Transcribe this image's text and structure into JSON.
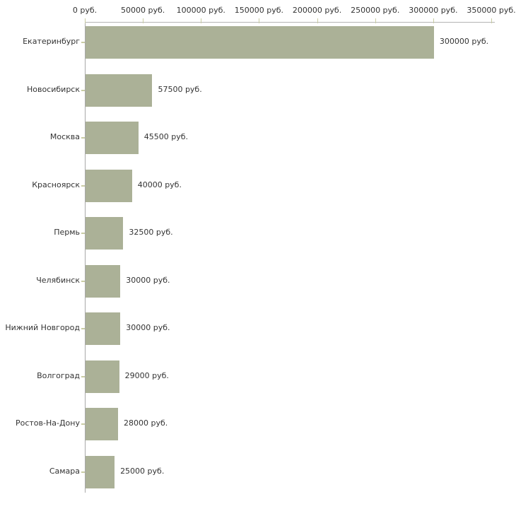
{
  "chart_data": {
    "type": "bar",
    "orientation": "horizontal",
    "title": "",
    "xlabel": "",
    "ylabel": "",
    "unit": "руб.",
    "grid": "off",
    "legend": "none",
    "categories": [
      "Екатеринбург",
      "Новосибирск",
      "Москва",
      "Красноярск",
      "Пермь",
      "Челябинск",
      "Нижний Новгород",
      "Волгоград",
      "Ростов-На-Дону",
      "Самара"
    ],
    "values": [
      300000,
      57500,
      45500,
      40000,
      32500,
      30000,
      30000,
      29000,
      28000,
      25000
    ],
    "value_labels": [
      "300000 руб.",
      "57500 руб.",
      "45500 руб.",
      "40000 руб.",
      "32500 руб.",
      "30000 руб.",
      "30000 руб.",
      "29000 руб.",
      "28000 руб.",
      "25000 руб."
    ],
    "x_axis": {
      "position": "top",
      "range": [
        0,
        350000
      ],
      "tick_values": [
        0,
        50000,
        100000,
        150000,
        200000,
        250000,
        300000,
        350000
      ],
      "tick_labels": [
        "0 руб.",
        "50000 руб.",
        "100000 руб.",
        "150000 руб.",
        "200000 руб.",
        "250000 руб.",
        "300000 руб.",
        "350000 руб."
      ]
    }
  },
  "colors": {
    "bar_fill": "#abb197",
    "axis_line_h": "#b3b3b3",
    "axis_line_v": "#a9a9a9",
    "tick_mark": "#c9cca4",
    "text": "#333333",
    "background": "#ffffff"
  }
}
